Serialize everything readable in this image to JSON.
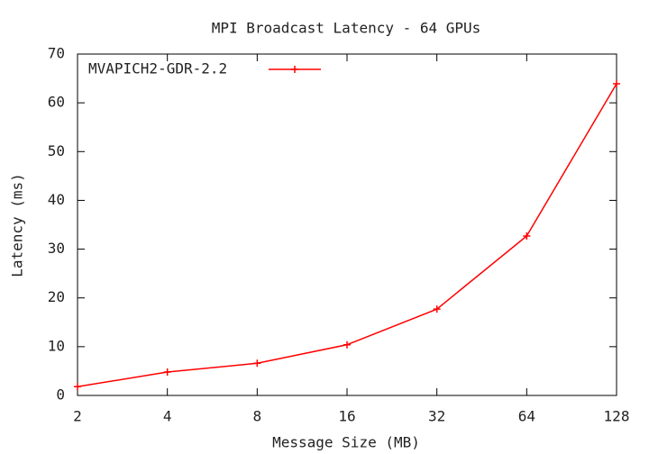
{
  "chart_data": {
    "type": "line",
    "title": "MPI Broadcast Latency - 64 GPUs",
    "xlabel": "Message Size (MB)",
    "ylabel": "Latency (ms)",
    "x": [
      2,
      4,
      8,
      16,
      32,
      64,
      128
    ],
    "series": [
      {
        "name": "MVAPICH2-GDR-2.2",
        "color": "#ff0000",
        "values": [
          1.8,
          4.8,
          6.6,
          10.4,
          17.7,
          32.7,
          63.9
        ]
      }
    ],
    "xlim": [
      2,
      128
    ],
    "xticks": [
      2,
      4,
      8,
      16,
      32,
      64,
      128
    ],
    "xscale_log_base": 2,
    "ylim": [
      0,
      70
    ],
    "yticks": [
      0,
      10,
      20,
      30,
      40,
      50,
      60,
      70
    ],
    "legend": "top-left",
    "grid": false
  }
}
